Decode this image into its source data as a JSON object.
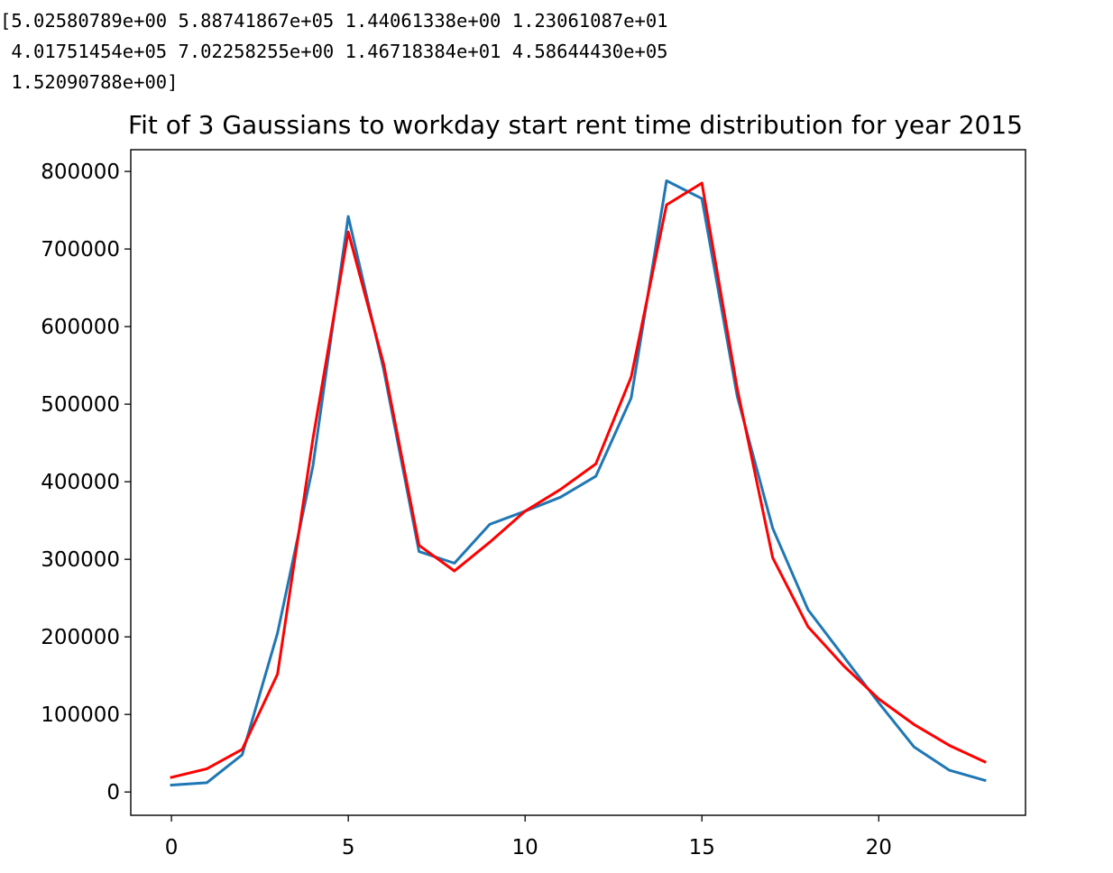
{
  "printed_output": {
    "lines": [
      "[5.02580789e+00 5.88741867e+05 1.44061338e+00 1.23061087e+01",
      " 4.01751454e+05 7.02258255e+00 1.46718384e+01 4.58644430e+05",
      " 1.52090788e+00]"
    ]
  },
  "chart_data": {
    "type": "line",
    "title": "Fit of 3 Gaussians to workday start rent time distribution for year 2015",
    "xlabel": "",
    "ylabel": "",
    "xlim": [
      -1.15,
      24.15
    ],
    "ylim": [
      -30000,
      828000
    ],
    "x_ticks": [
      0,
      5,
      10,
      15,
      20
    ],
    "y_ticks": [
      0,
      100000,
      200000,
      300000,
      400000,
      500000,
      600000,
      700000,
      800000
    ],
    "grid": false,
    "legend": "none",
    "x": [
      0,
      1,
      2,
      3,
      4,
      5,
      6,
      7,
      8,
      9,
      10,
      11,
      12,
      13,
      14,
      15,
      16,
      17,
      18,
      19,
      20,
      21,
      22,
      23
    ],
    "series": [
      {
        "color": "#1f77b4",
        "values": [
          9000,
          12000,
          48000,
          205000,
          420000,
          742000,
          545000,
          310000,
          295000,
          345000,
          362000,
          380000,
          407000,
          508000,
          788000,
          765000,
          510000,
          340000,
          235000,
          175000,
          115000,
          58000,
          28000,
          15000
        ]
      },
      {
        "color": "#ff0000",
        "values": [
          19000,
          30000,
          55000,
          152000,
          455000,
          722000,
          552000,
          318000,
          285000,
          322000,
          362000,
          390000,
          423000,
          535000,
          757000,
          785000,
          520000,
          302000,
          213000,
          163000,
          120000,
          87000,
          60000,
          39000
        ]
      }
    ]
  }
}
